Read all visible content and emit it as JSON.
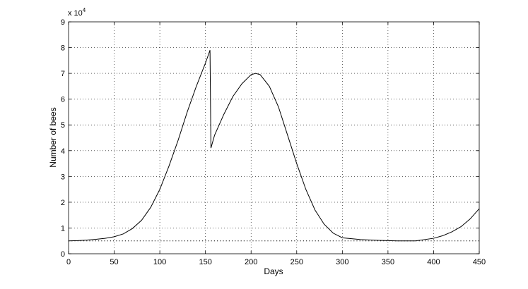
{
  "chart_data": {
    "type": "line",
    "xlabel": "Days",
    "ylabel": "Number of bees",
    "y_multiplier": "x 10",
    "y_multiplier_exponent": "4",
    "xlim": [
      0,
      450
    ],
    "ylim": [
      0,
      9
    ],
    "x_ticks": [
      0,
      50,
      100,
      150,
      200,
      250,
      300,
      350,
      400,
      450
    ],
    "y_ticks": [
      0,
      1,
      2,
      3,
      4,
      5,
      6,
      7,
      8,
      9
    ],
    "grid": true,
    "series": [
      {
        "style": "solid",
        "x": [
          0,
          10,
          20,
          30,
          40,
          50,
          60,
          70,
          80,
          90,
          100,
          110,
          120,
          130,
          140,
          150,
          155,
          156,
          160,
          170,
          180,
          190,
          200,
          205,
          210,
          220,
          230,
          240,
          250,
          260,
          270,
          280,
          290,
          300,
          320,
          340,
          360,
          380,
          400,
          410,
          420,
          430,
          440,
          450
        ],
        "y": [
          0.5,
          0.51,
          0.53,
          0.56,
          0.6,
          0.66,
          0.77,
          0.98,
          1.3,
          1.8,
          2.5,
          3.4,
          4.4,
          5.5,
          6.5,
          7.4,
          7.9,
          4.1,
          4.6,
          5.4,
          6.1,
          6.6,
          6.95,
          7.0,
          6.95,
          6.5,
          5.7,
          4.6,
          3.5,
          2.5,
          1.7,
          1.15,
          0.8,
          0.62,
          0.55,
          0.52,
          0.5,
          0.5,
          0.6,
          0.7,
          0.85,
          1.05,
          1.35,
          1.75
        ]
      },
      {
        "style": "dotted",
        "x": [
          0,
          450
        ],
        "y": [
          0.5,
          0.5
        ]
      }
    ]
  }
}
